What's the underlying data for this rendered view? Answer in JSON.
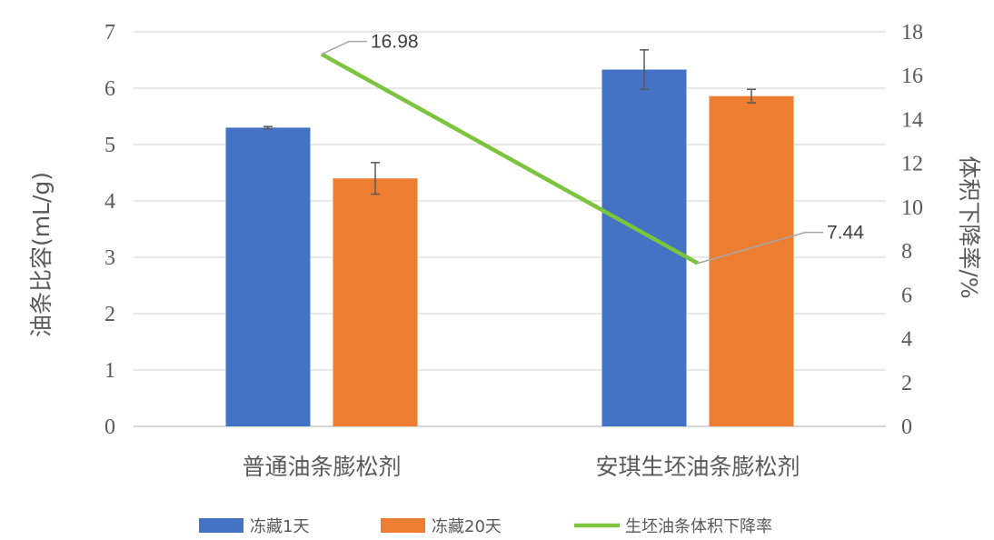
{
  "chart_data": {
    "type": "bar",
    "categories": [
      "普通油条膨松剂",
      "安琪生坯油条膨松剂"
    ],
    "series": [
      {
        "name": "冻藏1天",
        "kind": "bar",
        "axis": "left",
        "color": "#4472C4",
        "values": [
          5.3,
          6.33
        ],
        "error": [
          0.02,
          0.35
        ]
      },
      {
        "name": "冻藏20天",
        "kind": "bar",
        "axis": "left",
        "color": "#ED7D31",
        "values": [
          4.4,
          5.86
        ],
        "error": [
          0.28,
          0.12
        ]
      },
      {
        "name": "生坯油条体积下降率",
        "kind": "line",
        "axis": "right",
        "color": "#7CC33E",
        "values": [
          16.98,
          7.44
        ],
        "labels": [
          "16.98",
          "7.44"
        ]
      }
    ],
    "ylabel": "油条比容(mL/g)",
    "y2label": "体积下降率/%",
    "ylim": [
      0,
      7
    ],
    "y2lim": [
      0,
      18
    ],
    "yticks": [
      "0",
      "1",
      "2",
      "3",
      "4",
      "5",
      "6",
      "7"
    ],
    "y2ticks": [
      "0",
      "2",
      "4",
      "6",
      "8",
      "10",
      "12",
      "14",
      "16",
      "18"
    ],
    "grid": true,
    "legend": "bottom"
  }
}
